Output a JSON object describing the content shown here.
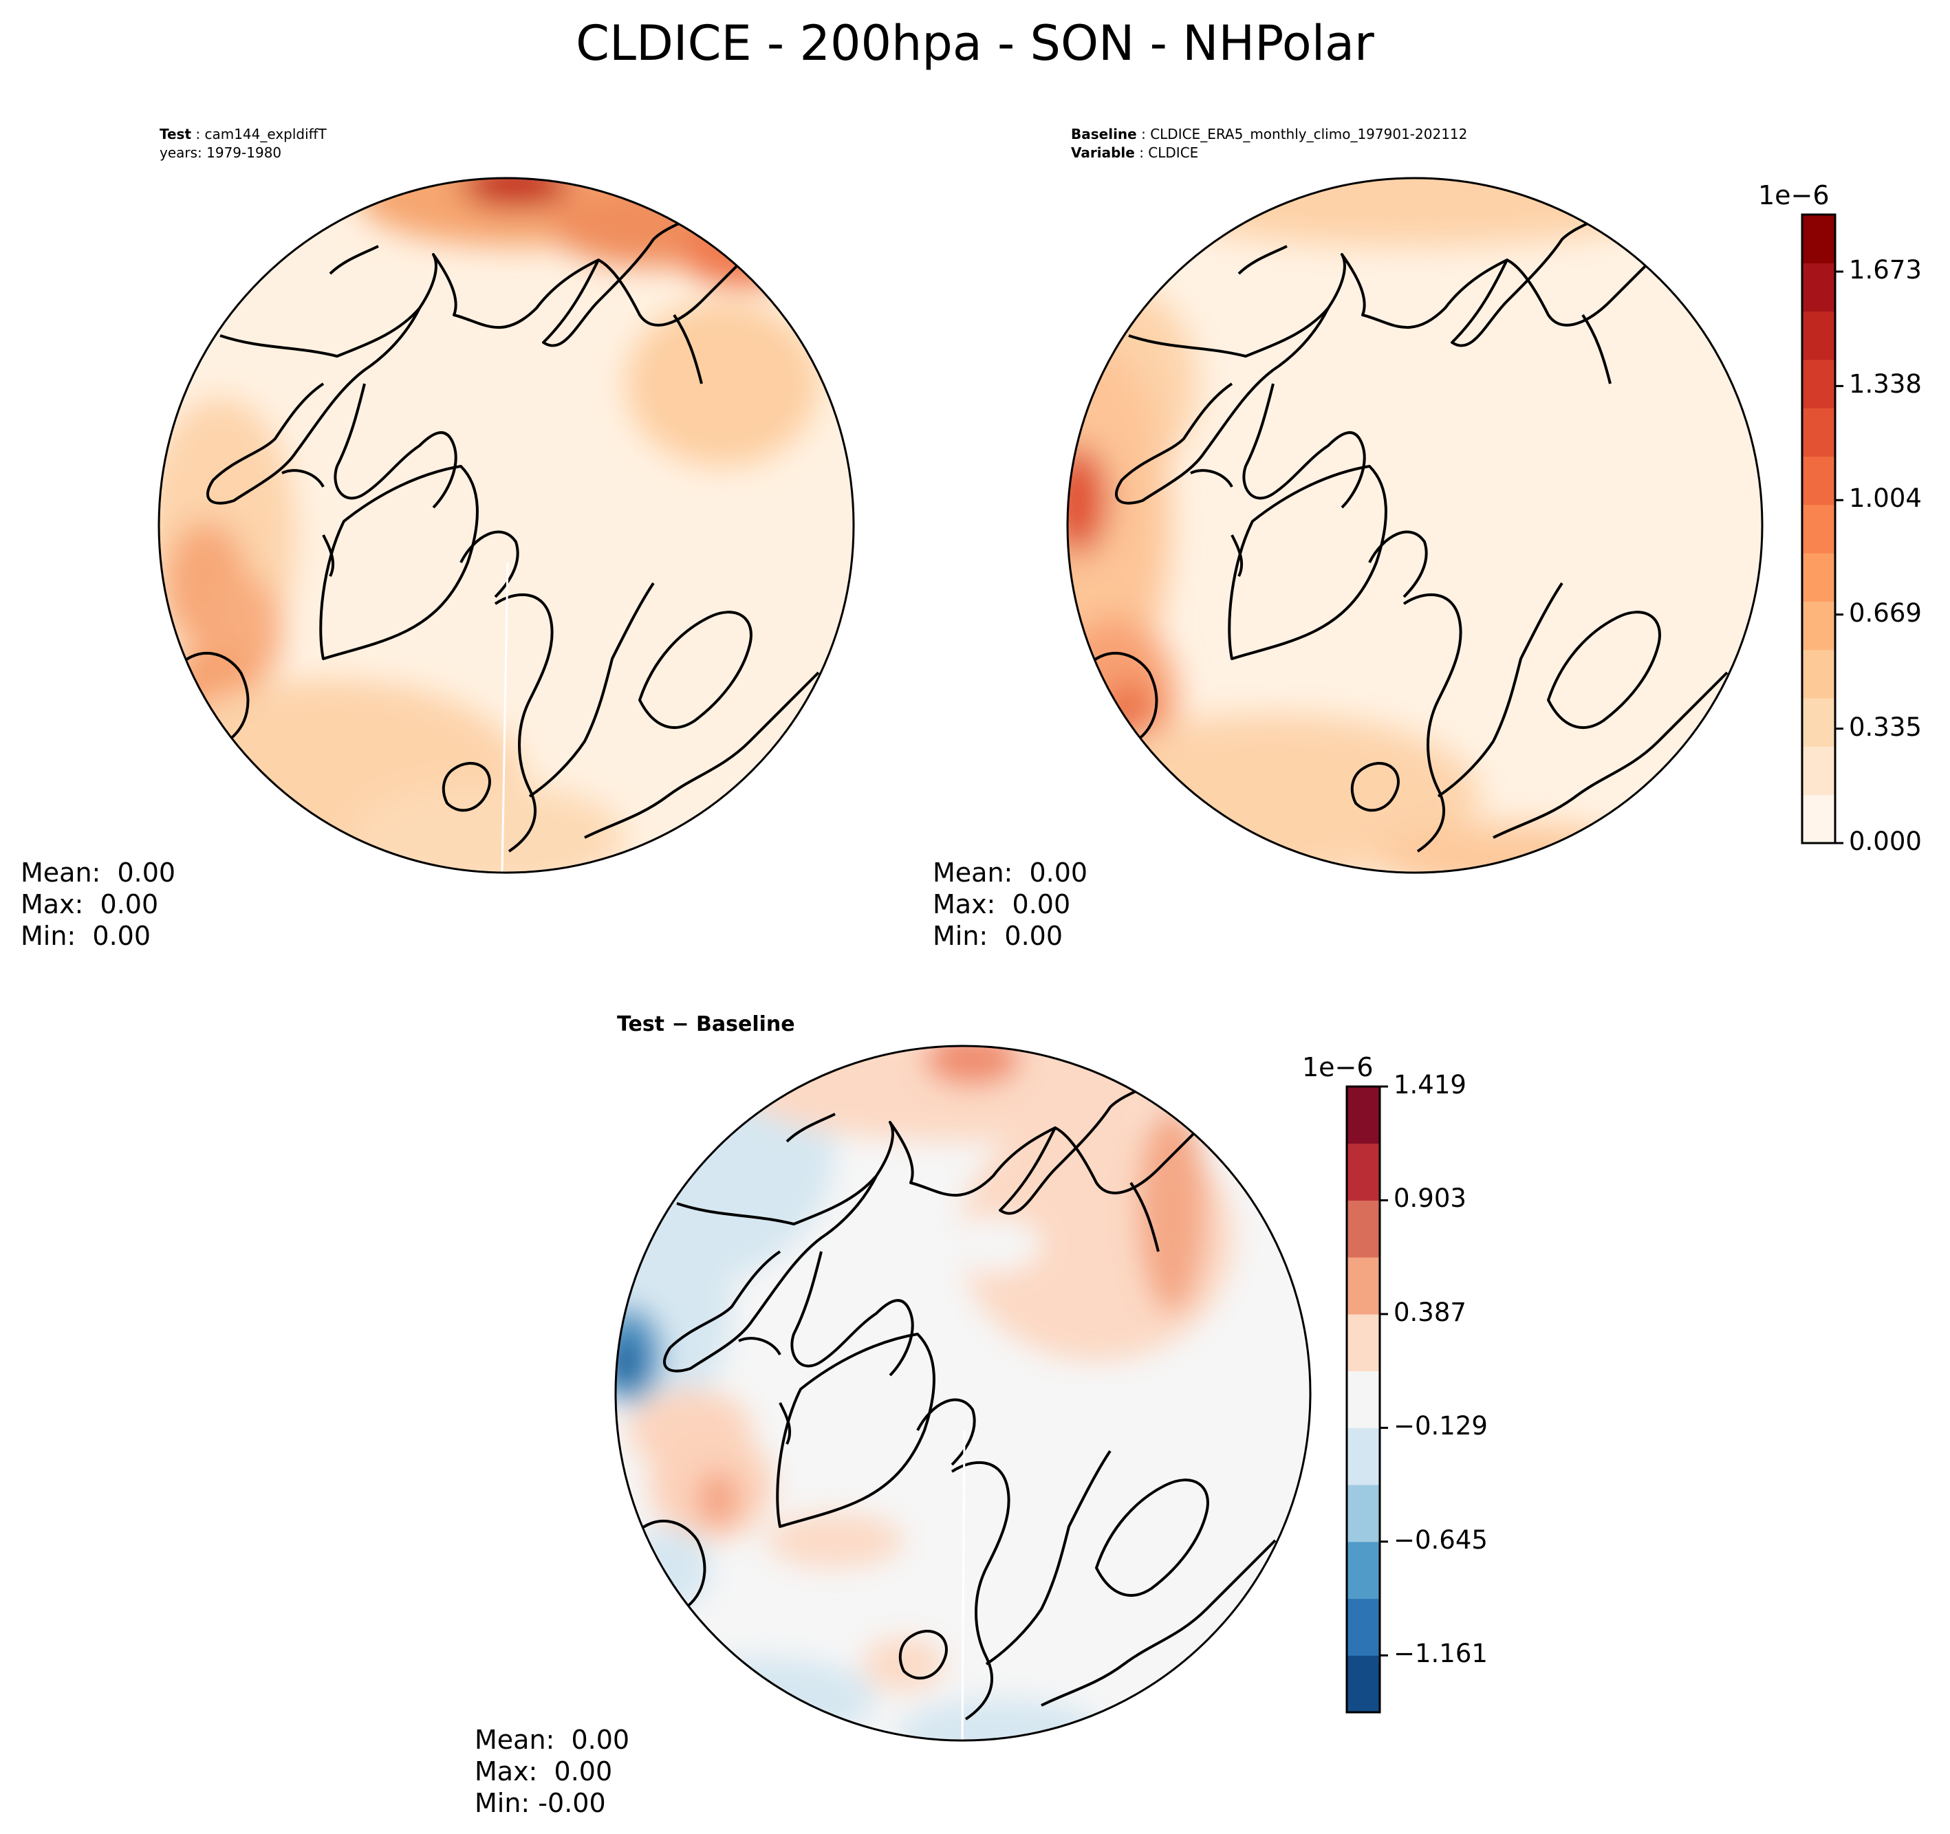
{
  "title": "CLDICE - 200hpa - SON - NHPolar",
  "panels": {
    "test": {
      "label_key": "Test",
      "label_value": "cam144_expldiffT",
      "line2": "years: 1979-1980",
      "stats": {
        "mean": "Mean:  0.00",
        "max": "Max:  0.00",
        "min": "Min:  0.00"
      }
    },
    "baseline": {
      "label_key": "Baseline",
      "label_value": "CLDICE_ERA5_monthly_climo_197901-202112",
      "var_key": "Variable",
      "var_value": "CLDICE",
      "stats": {
        "mean": "Mean:  0.00",
        "max": "Max:  0.00",
        "min": "Min:  0.00"
      }
    },
    "diff": {
      "label": "Test − Baseline",
      "stats": {
        "mean": "Mean:  0.00",
        "max": "Max:  0.00",
        "min": "Min: -0.00"
      }
    }
  },
  "colorbars": {
    "top": {
      "scale_label": "1e−6",
      "ticks": [
        "0.000",
        "0.335",
        "0.669",
        "1.004",
        "1.338",
        "1.673"
      ],
      "tick_values": [
        0.0,
        0.335,
        0.669,
        1.004,
        1.338,
        1.673
      ],
      "range": [
        0.0,
        1.84
      ],
      "levels": [
        "#fff5eb",
        "#fee6ce",
        "#fdd9b1",
        "#fdc997",
        "#fdb57c",
        "#fd9d62",
        "#f9844f",
        "#f06b40",
        "#e45234",
        "#d43b29",
        "#c0271f",
        "#a61419",
        "#8b0000"
      ]
    },
    "diff": {
      "scale_label": "1e−6",
      "ticks": [
        "1.419",
        "0.903",
        "0.387",
        "−0.129",
        "−0.645",
        "−1.161"
      ],
      "tick_values": [
        1.419,
        0.903,
        0.387,
        -0.129,
        -0.645,
        -1.161
      ],
      "range": [
        -1.419,
        1.419
      ],
      "levels": [
        "#134b87",
        "#2c74b4",
        "#519bc9",
        "#9dcae1",
        "#d4e6f1",
        "#f5f5f5",
        "#fcdbc7",
        "#f4a582",
        "#d96e5a",
        "#bb2d35",
        "#830d26"
      ]
    }
  },
  "colors": {
    "ocean_fill_test": "#fff1e1",
    "ocean_fill_base": "#fff2e3",
    "ocean_fill_diff": "#f6f6f6",
    "coastline": "#000000"
  }
}
